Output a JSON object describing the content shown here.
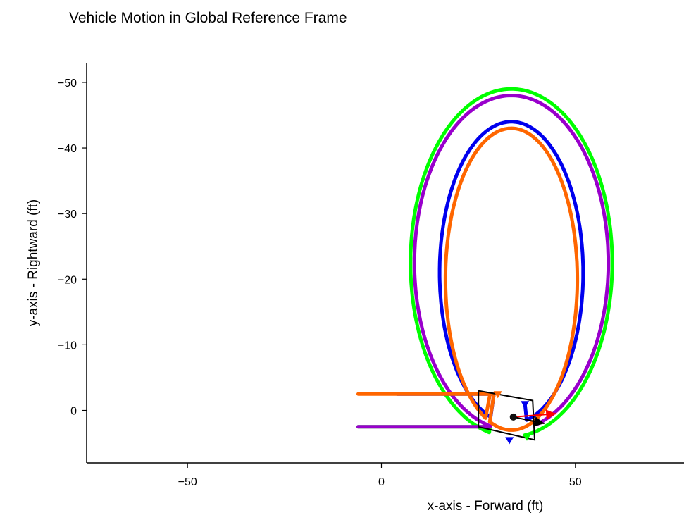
{
  "chart_data": {
    "type": "line",
    "title": "Vehicle Motion in Global Reference Frame",
    "xlabel": "x-axis - Forward (ft)",
    "ylabel": "y-axis - Rightward (ft)",
    "xlim": [
      -76,
      78
    ],
    "ylim": [
      8,
      -53
    ],
    "y_inverted": true,
    "xticks": [
      -50,
      0,
      50
    ],
    "yticks": [
      -50,
      -40,
      -30,
      -20,
      -10,
      0
    ],
    "grid": false,
    "series": [
      {
        "color": "#00ff00",
        "path": {
          "entry": [
            [
              -6,
              2.5
            ],
            [
              28,
              2.5
            ]
          ],
          "center": [
            33.5,
            -22.5
          ],
          "rx": 26,
          "ry": 26.5,
          "end": [
            37,
            4
          ]
        }
      },
      {
        "color": "#9900cc",
        "path": {
          "entry": [
            [
              -6,
              2.5
            ],
            [
              28,
              2.5
            ]
          ],
          "center": [
            33.5,
            -22.5
          ],
          "rx": 25,
          "ry": 25.5,
          "end": [
            40,
            1.5
          ]
        }
      },
      {
        "color": "#0000ee",
        "path": {
          "entry": [
            [
              4,
              -2.5
            ],
            [
              29,
              -2.5
            ]
          ],
          "center": [
            33.5,
            -21
          ],
          "rx": 18.5,
          "ry": 23,
          "end": [
            37,
            -1
          ]
        }
      },
      {
        "color": "#ff6600",
        "path": {
          "entry": [
            [
              -6,
              -2.5
            ],
            [
              28,
              -2.5
            ]
          ],
          "center": [
            33.5,
            -20
          ],
          "rx": 17,
          "ry": 23,
          "end": [
            29,
            -2.5
          ]
        }
      }
    ],
    "vehicle": {
      "body_color": "#000000",
      "corners": [
        [
          25,
          -3
        ],
        [
          40,
          -1
        ],
        [
          40,
          -4
        ],
        [
          39,
          5
        ],
        [
          24,
          2.5
        ]
      ],
      "reference_point": [
        34,
        1
      ],
      "heading_arrow": {
        "from": [
          34,
          1
        ],
        "to": [
          42,
          2
        ],
        "color": "#000000"
      },
      "velocity_arrow": {
        "from": [
          34,
          1
        ],
        "to": [
          45,
          0.5
        ],
        "color": "#ff0000"
      },
      "wheel_markers": [
        {
          "at": [
            33,
            4.5
          ],
          "color": "#0000ee"
        },
        {
          "at": [
            37,
            -1
          ],
          "color": "#0000ee"
        },
        {
          "at": [
            37.5,
            4
          ],
          "color": "#00ff00"
        },
        {
          "at": [
            30,
            -2.5
          ],
          "color": "#ff6600"
        }
      ]
    }
  }
}
